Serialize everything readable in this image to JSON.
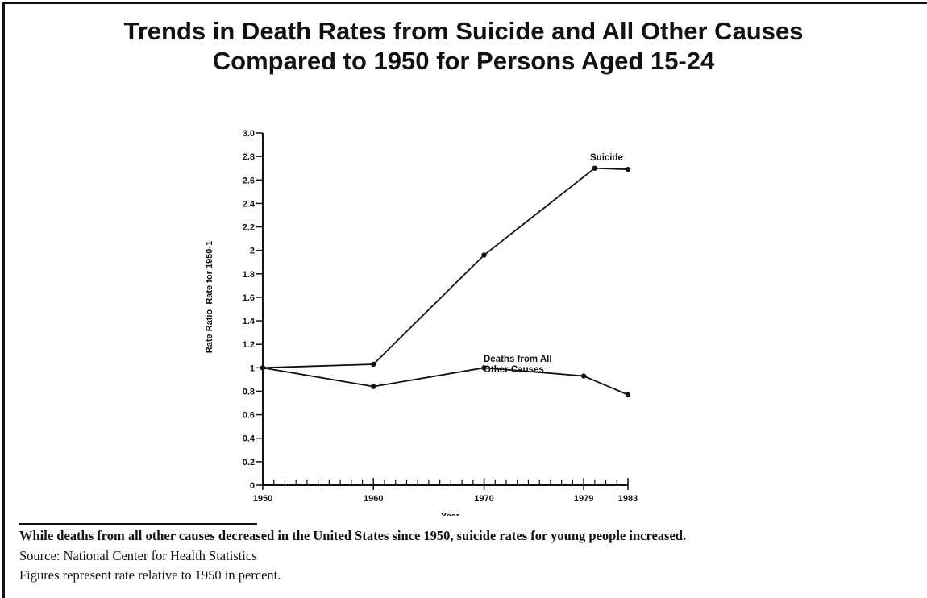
{
  "chart_data": {
    "type": "line",
    "title": "Trends in Death Rates from Suicide and All Other Causes",
    "subtitle": "Compared to 1950 for Persons Aged 15-24",
    "xlabel": "Year",
    "ylabel": "Rate Ratio  Rate for 1950-1",
    "ylim": [
      0,
      3.0
    ],
    "xlim": [
      1950,
      1983
    ],
    "x_ticks": [
      1950,
      1960,
      1970,
      1979,
      1983
    ],
    "y_ticks": [
      "0",
      "0.2",
      "0.4",
      "0.6",
      "0.8",
      "1",
      "1.2",
      "1.4",
      "1.6",
      "1.8",
      "2",
      "2.2",
      "2.4",
      "2.6",
      "2.8",
      "3.0"
    ],
    "grid": false,
    "series": [
      {
        "name": "Suicide",
        "x": [
          1950,
          1960,
          1970,
          1980,
          1983
        ],
        "y": [
          1.0,
          1.03,
          1.96,
          2.7,
          2.69
        ]
      },
      {
        "name": "Deaths from All Other Causes",
        "x": [
          1950,
          1960,
          1970,
          1979,
          1983
        ],
        "y": [
          1.0,
          0.84,
          1.0,
          0.93,
          0.77
        ]
      }
    ]
  },
  "caption": {
    "line1": "While deaths from all other causes decreased in the United States since 1950, suicide rates for young people increased.",
    "line2": "Source: National Center for Health Statistics",
    "line3": "Figures represent rate relative to 1950 in percent."
  },
  "colors": {
    "ink": "#111111",
    "background": "#ffffff"
  }
}
